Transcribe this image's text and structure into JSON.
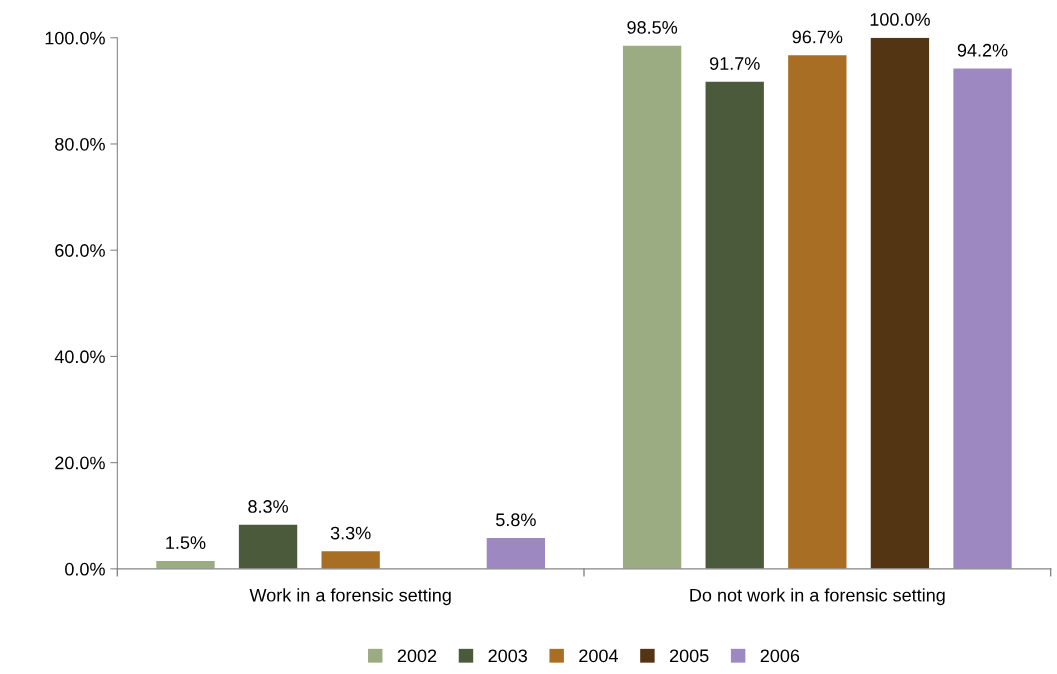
{
  "chart_data": {
    "type": "bar",
    "categories": [
      "Work in a forensic setting",
      "Do not work in a forensic setting"
    ],
    "series": [
      {
        "name": "2002",
        "color": "#9bab82",
        "values": [
          1.5,
          98.5
        ],
        "value_labels": [
          "1.5%",
          "98.5%"
        ]
      },
      {
        "name": "2003",
        "color": "#4a5a3a",
        "values": [
          8.3,
          91.7
        ],
        "value_labels": [
          "8.3%",
          "91.7%"
        ]
      },
      {
        "name": "2004",
        "color": "#a86e24",
        "values": [
          3.3,
          96.7
        ],
        "value_labels": [
          "3.3%",
          "96.7%"
        ]
      },
      {
        "name": "2005",
        "color": "#533413",
        "values": [
          0,
          100.0
        ],
        "value_labels": [
          null,
          "100.0%"
        ]
      },
      {
        "name": "2006",
        "color": "#9e88c2",
        "values": [
          5.8,
          94.2
        ],
        "value_labels": [
          "5.8%",
          "94.2%"
        ]
      }
    ],
    "ylim": [
      0,
      100
    ],
    "yticks": [
      {
        "value": 0,
        "label": "0.0%"
      },
      {
        "value": 20,
        "label": "20.0%"
      },
      {
        "value": 40,
        "label": "40.0%"
      },
      {
        "value": 60,
        "label": "60.0%"
      },
      {
        "value": 80,
        "label": "80.0%"
      },
      {
        "value": 100,
        "label": "100.0%"
      }
    ],
    "grid": false,
    "legend": "bottom"
  }
}
